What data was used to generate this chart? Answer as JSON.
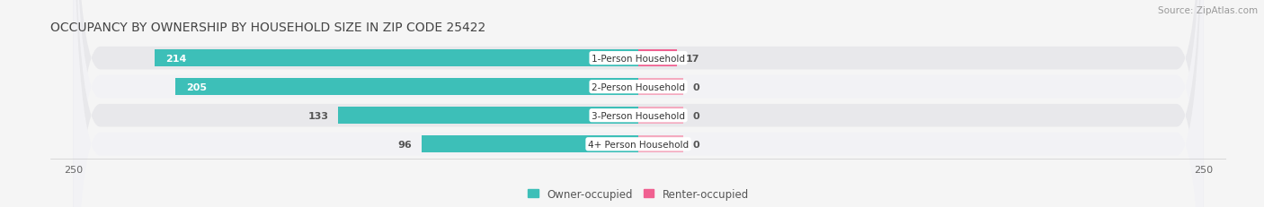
{
  "title": "OCCUPANCY BY OWNERSHIP BY HOUSEHOLD SIZE IN ZIP CODE 25422",
  "source": "Source: ZipAtlas.com",
  "categories": [
    "1-Person Household",
    "2-Person Household",
    "3-Person Household",
    "4+ Person Household"
  ],
  "owner_values": [
    214,
    205,
    133,
    96
  ],
  "renter_values": [
    17,
    0,
    0,
    0
  ],
  "renter_stub": 20,
  "owner_color": "#3DBFB8",
  "renter_color_high": "#F06090",
  "renter_color_low": "#F4AABF",
  "row_bg_color_odd": "#e8e8eb",
  "row_bg_color_even": "#f2f2f5",
  "fig_bg_color": "#f5f5f5",
  "title_fontsize": 10,
  "source_fontsize": 7.5,
  "label_fontsize": 8,
  "cat_fontsize": 7.5,
  "legend_fontsize": 8.5,
  "axis_scale": 250,
  "owner_threshold": 150
}
